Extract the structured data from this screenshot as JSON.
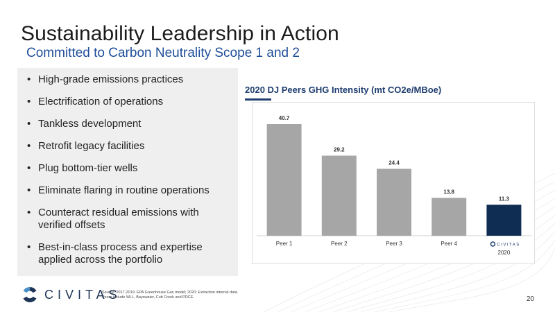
{
  "slide": {
    "title": "Sustainability Leadership in Action",
    "subtitle": "Committed to Carbon Neutrality Scope 1 and 2",
    "bullets": [
      "High-grade emissions practices",
      "Electrification of operations",
      "Tankless development",
      "Retrofit legacy facilities",
      "Plug bottom-tier wells",
      "Eliminate flaring in routine operations",
      "Counteract residual emissions with verified offsets",
      "Best-in-class process and expertise applied across the portfolio"
    ],
    "source_line1": "Source: 2017-2019: EPA Greenhouse Gas model; 2020: Extraction internal data.",
    "source_line2": "Peers include WLL, Bayswater, Cub Creek and PDCE.",
    "page_number": "20",
    "logo_text": "CIVITAS"
  },
  "chart_data": {
    "type": "bar",
    "title": "2020 DJ Peers GHG Intensity (mt CO2e/MBoe)",
    "categories": [
      "Peer 1",
      "Peer 2",
      "Peer 3",
      "Peer 4",
      "2020"
    ],
    "highlight_logo_text": "CIVITAS",
    "values": [
      40.7,
      29.2,
      24.4,
      13.8,
      11.3
    ],
    "value_labels": [
      "40.7",
      "29.2",
      "24.4",
      "13.8",
      "11.3"
    ],
    "ylim": [
      0,
      45
    ],
    "grid": false,
    "colors": {
      "peer": "#a6a6a6",
      "highlight": "#0f2d52",
      "accent": "#1e3d6f"
    },
    "highlight_index": 4
  }
}
